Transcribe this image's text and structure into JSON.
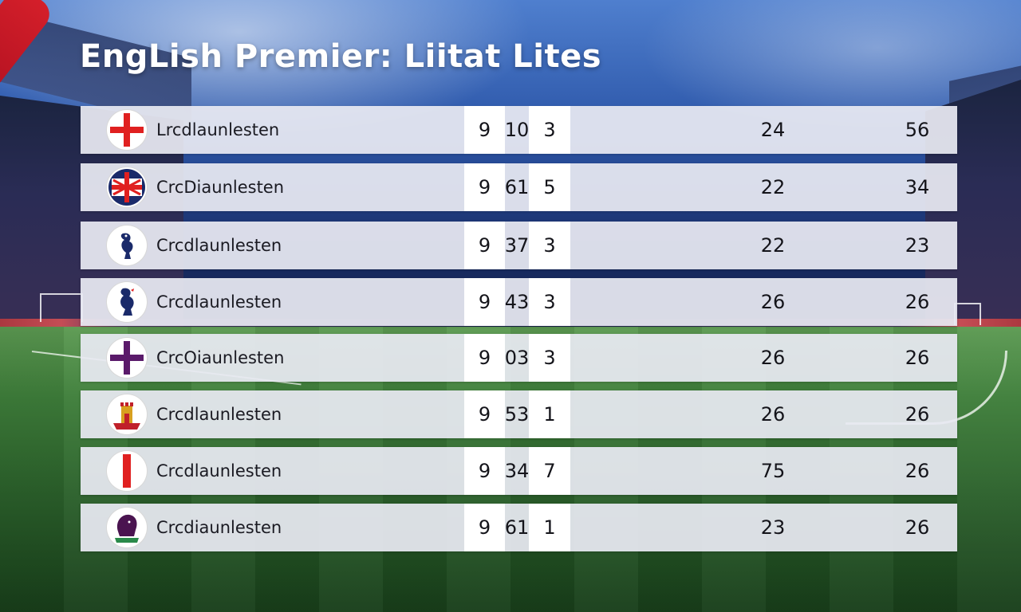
{
  "title": "EngLish Premier: Liitat Lites",
  "rows": [
    {
      "team": "Lrcdlaunlesten",
      "a": "9",
      "b": "10",
      "c": "3",
      "d": "24",
      "e": "56",
      "badge_icon": "red-cross-crest-icon"
    },
    {
      "team": "CrcDiaunlesten",
      "a": "9",
      "b": "61",
      "c": "5",
      "d": "22",
      "e": "34",
      "badge_icon": "union-flag-crest-icon"
    },
    {
      "team": "Crcdlaunlesten",
      "a": "9",
      "b": "37",
      "c": "3",
      "d": "22",
      "e": "23",
      "badge_icon": "cockerel-crest-icon"
    },
    {
      "team": "Crcdlaunlesten",
      "a": "9",
      "b": "43",
      "c": "3",
      "d": "26",
      "e": "26",
      "badge_icon": "cockerel-crest-icon"
    },
    {
      "team": "CrcOiaunlesten",
      "a": "9",
      "b": "03",
      "c": "3",
      "d": "26",
      "e": "26",
      "badge_icon": "purple-cross-crest-icon"
    },
    {
      "team": "Crcdlaunlesten",
      "a": "9",
      "b": "53",
      "c": "1",
      "d": "26",
      "e": "26",
      "badge_icon": "castle-crest-icon"
    },
    {
      "team": "Crcdlaunlesten",
      "a": "9",
      "b": "34",
      "c": "7",
      "d": "75",
      "e": "26",
      "badge_icon": "red-stripe-crest-icon"
    },
    {
      "team": "Crcdiaunlesten",
      "a": "9",
      "b": "61",
      "c": "1",
      "d": "23",
      "e": "26",
      "badge_icon": "lion-crest-icon"
    }
  ],
  "colors": {
    "row_bg": "#e8eaf2",
    "highlight_col": "#ffffff",
    "title_text": "#ffffff",
    "crest_red": "#e02020",
    "crest_navy": "#1a2a6a",
    "crest_purple": "#5a1a6a"
  }
}
